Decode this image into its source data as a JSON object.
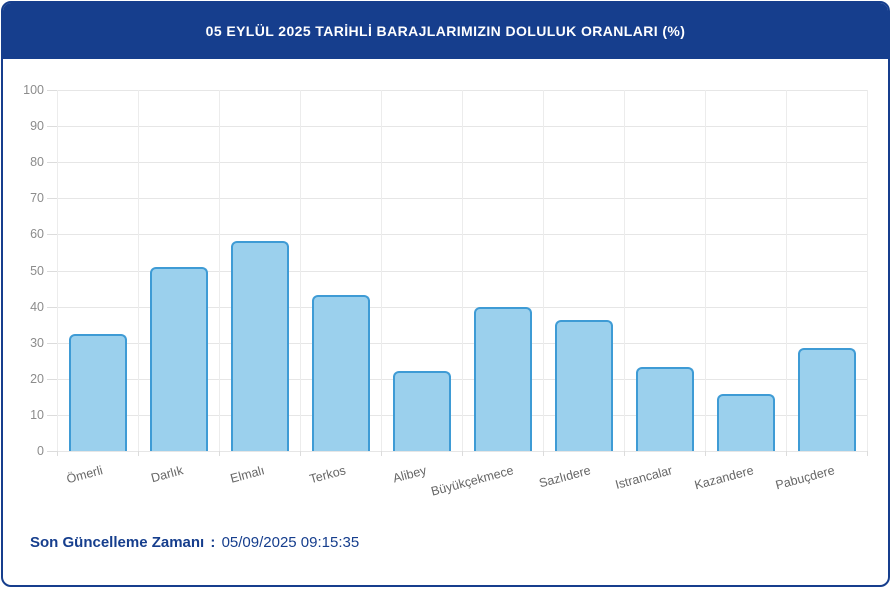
{
  "header": {
    "title": "05 EYLÜL 2025 TARİHLİ BARAJLARIMIZIN DOLULUK ORANLARI (%)"
  },
  "footer": {
    "label": "Son Güncelleme Zamanı",
    "separator": ":",
    "value": "05/09/2025 09:15:35"
  },
  "colors": {
    "navy": "#163E8D",
    "bar_fill": "#9BD0ED",
    "bar_border": "#3E9BD5",
    "gridline": "#e6e6e6",
    "tick_label": "#8c8c8c",
    "x_label": "#666666",
    "title_text": "#ffffff",
    "background": "#ffffff"
  },
  "chart_data": {
    "type": "bar",
    "title": "05 EYLÜL 2025 TARİHLİ BARAJLARIMIZIN DOLULUK ORANLARI (%)",
    "categories": [
      "Ömerli",
      "Darlık",
      "Elmalı",
      "Terkos",
      "Alibey",
      "Büyükçekmece",
      "Sazlıdere",
      "Istrancalar",
      "Kazandere",
      "Pabuçdere"
    ],
    "values": [
      32.4,
      50.9,
      58.1,
      43.2,
      22.2,
      39.8,
      36.2,
      23.3,
      15.9,
      28.4
    ],
    "xlabel": "",
    "ylabel": "",
    "ylim": [
      0,
      100
    ],
    "y_ticks": [
      0,
      10,
      20,
      30,
      40,
      50,
      60,
      70,
      80,
      90,
      100
    ],
    "grid": true,
    "legend": false,
    "x_label_rotation_deg": -15
  }
}
